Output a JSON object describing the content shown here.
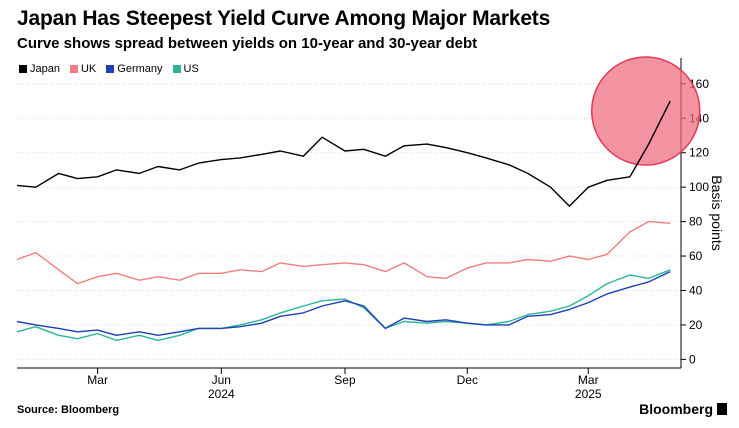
{
  "header": {
    "title": "Japan Has Steepest Yield Curve Among Major Markets",
    "subtitle": "Curve shows spread between yields on 10-year and 30-year debt"
  },
  "footer": {
    "source": "Source: Bloomberg",
    "brand": "Bloomberg"
  },
  "chart_data": {
    "type": "line",
    "title": "Japan Has Steepest Yield Curve Among Major Markets",
    "subtitle": "Curve shows spread between yields on 10-year and 30-year debt",
    "xlabel": "",
    "ylabel": "Basis points",
    "ylim": [
      -5,
      175
    ],
    "yticks": [
      0,
      20,
      40,
      60,
      80,
      100,
      120,
      140,
      160
    ],
    "x_month_ticks": [
      "Mar",
      "Jun",
      "Sep",
      "Dec",
      "Mar"
    ],
    "x_year_labels": [
      "2024",
      "2025"
    ],
    "grid": true,
    "legend_position": "top-left",
    "highlight": {
      "shape": "circle",
      "color": "#f06a7e",
      "around_series": "Japan"
    },
    "x": [
      "2024-01-01",
      "2024-01-15",
      "2024-02-01",
      "2024-02-15",
      "2024-03-01",
      "2024-03-15",
      "2024-04-01",
      "2024-04-15",
      "2024-05-01",
      "2024-05-15",
      "2024-06-01",
      "2024-06-15",
      "2024-07-01",
      "2024-07-15",
      "2024-08-01",
      "2024-08-15",
      "2024-09-01",
      "2024-09-15",
      "2024-10-01",
      "2024-10-15",
      "2024-11-01",
      "2024-11-15",
      "2024-12-01",
      "2024-12-15",
      "2025-01-01",
      "2025-01-15",
      "2025-02-01",
      "2025-02-15",
      "2025-03-01",
      "2025-03-15",
      "2025-04-01",
      "2025-04-15",
      "2025-05-01"
    ],
    "series": [
      {
        "name": "Japan",
        "color": "#000000",
        "values": [
          101,
          100,
          108,
          105,
          106,
          110,
          108,
          112,
          110,
          114,
          116,
          117,
          119,
          121,
          118,
          129,
          121,
          122,
          118,
          124,
          125,
          123,
          120,
          117,
          113,
          108,
          100,
          89,
          100,
          104,
          106,
          125,
          150
        ]
      },
      {
        "name": "UK",
        "color": "#f07e7e",
        "values": [
          58,
          62,
          52,
          44,
          48,
          50,
          46,
          48,
          46,
          50,
          50,
          52,
          51,
          56,
          54,
          55,
          56,
          55,
          51,
          56,
          48,
          47,
          53,
          56,
          56,
          58,
          57,
          60,
          58,
          61,
          74,
          80,
          79
        ]
      },
      {
        "name": "Germany",
        "color": "#1f3fb5",
        "values": [
          22,
          20,
          18,
          16,
          17,
          14,
          16,
          14,
          16,
          18,
          18,
          19,
          21,
          25,
          27,
          31,
          34,
          31,
          18,
          24,
          22,
          23,
          21,
          20,
          20,
          25,
          26,
          29,
          33,
          38,
          42,
          45,
          51
        ]
      },
      {
        "name": "US",
        "color": "#2ab59a",
        "values": [
          16,
          19,
          14,
          12,
          15,
          11,
          14,
          11,
          14,
          18,
          18,
          20,
          23,
          27,
          31,
          34,
          35,
          30,
          18,
          22,
          21,
          22,
          21,
          20,
          22,
          26,
          28,
          31,
          37,
          44,
          49,
          47,
          52
        ]
      }
    ]
  }
}
